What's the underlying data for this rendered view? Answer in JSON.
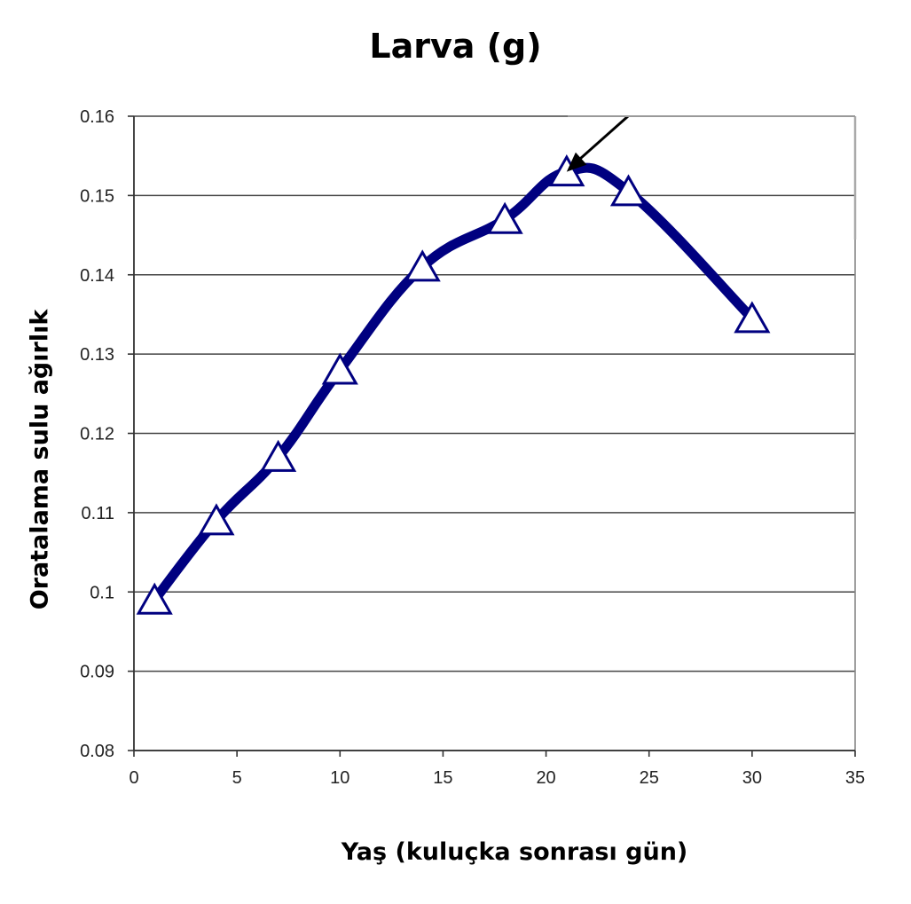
{
  "chart_data": {
    "type": "line",
    "title": "Larva (g)",
    "xlabel": "Yaş (kuluçka sonrası gün)",
    "ylabel": "Oratalama sulu ağırlık",
    "xlim": [
      0,
      35
    ],
    "ylim": [
      0.08,
      0.16
    ],
    "xticks": [
      "0",
      "5",
      "10",
      "15",
      "20",
      "25",
      "30",
      "35"
    ],
    "yticks": [
      "0.08",
      "0.09",
      "0.1",
      "0.11",
      "0.12",
      "0.13",
      "0.14",
      "0.15",
      "0.16"
    ],
    "grid": "horizontal",
    "legend": "none",
    "series": [
      {
        "x": [
          1,
          4,
          7,
          10,
          14,
          18,
          21,
          24,
          30
        ],
        "y": [
          0.099,
          0.109,
          0.117,
          0.128,
          0.141,
          0.147,
          0.153,
          0.1505,
          0.1345
        ],
        "color": "#000080",
        "marker": "triangle-open",
        "smooth": true
      }
    ],
    "annotations": [
      {
        "type": "arrow",
        "pointsTo": {
          "x": 21,
          "y": 0.153
        },
        "color": "#000000"
      }
    ]
  }
}
